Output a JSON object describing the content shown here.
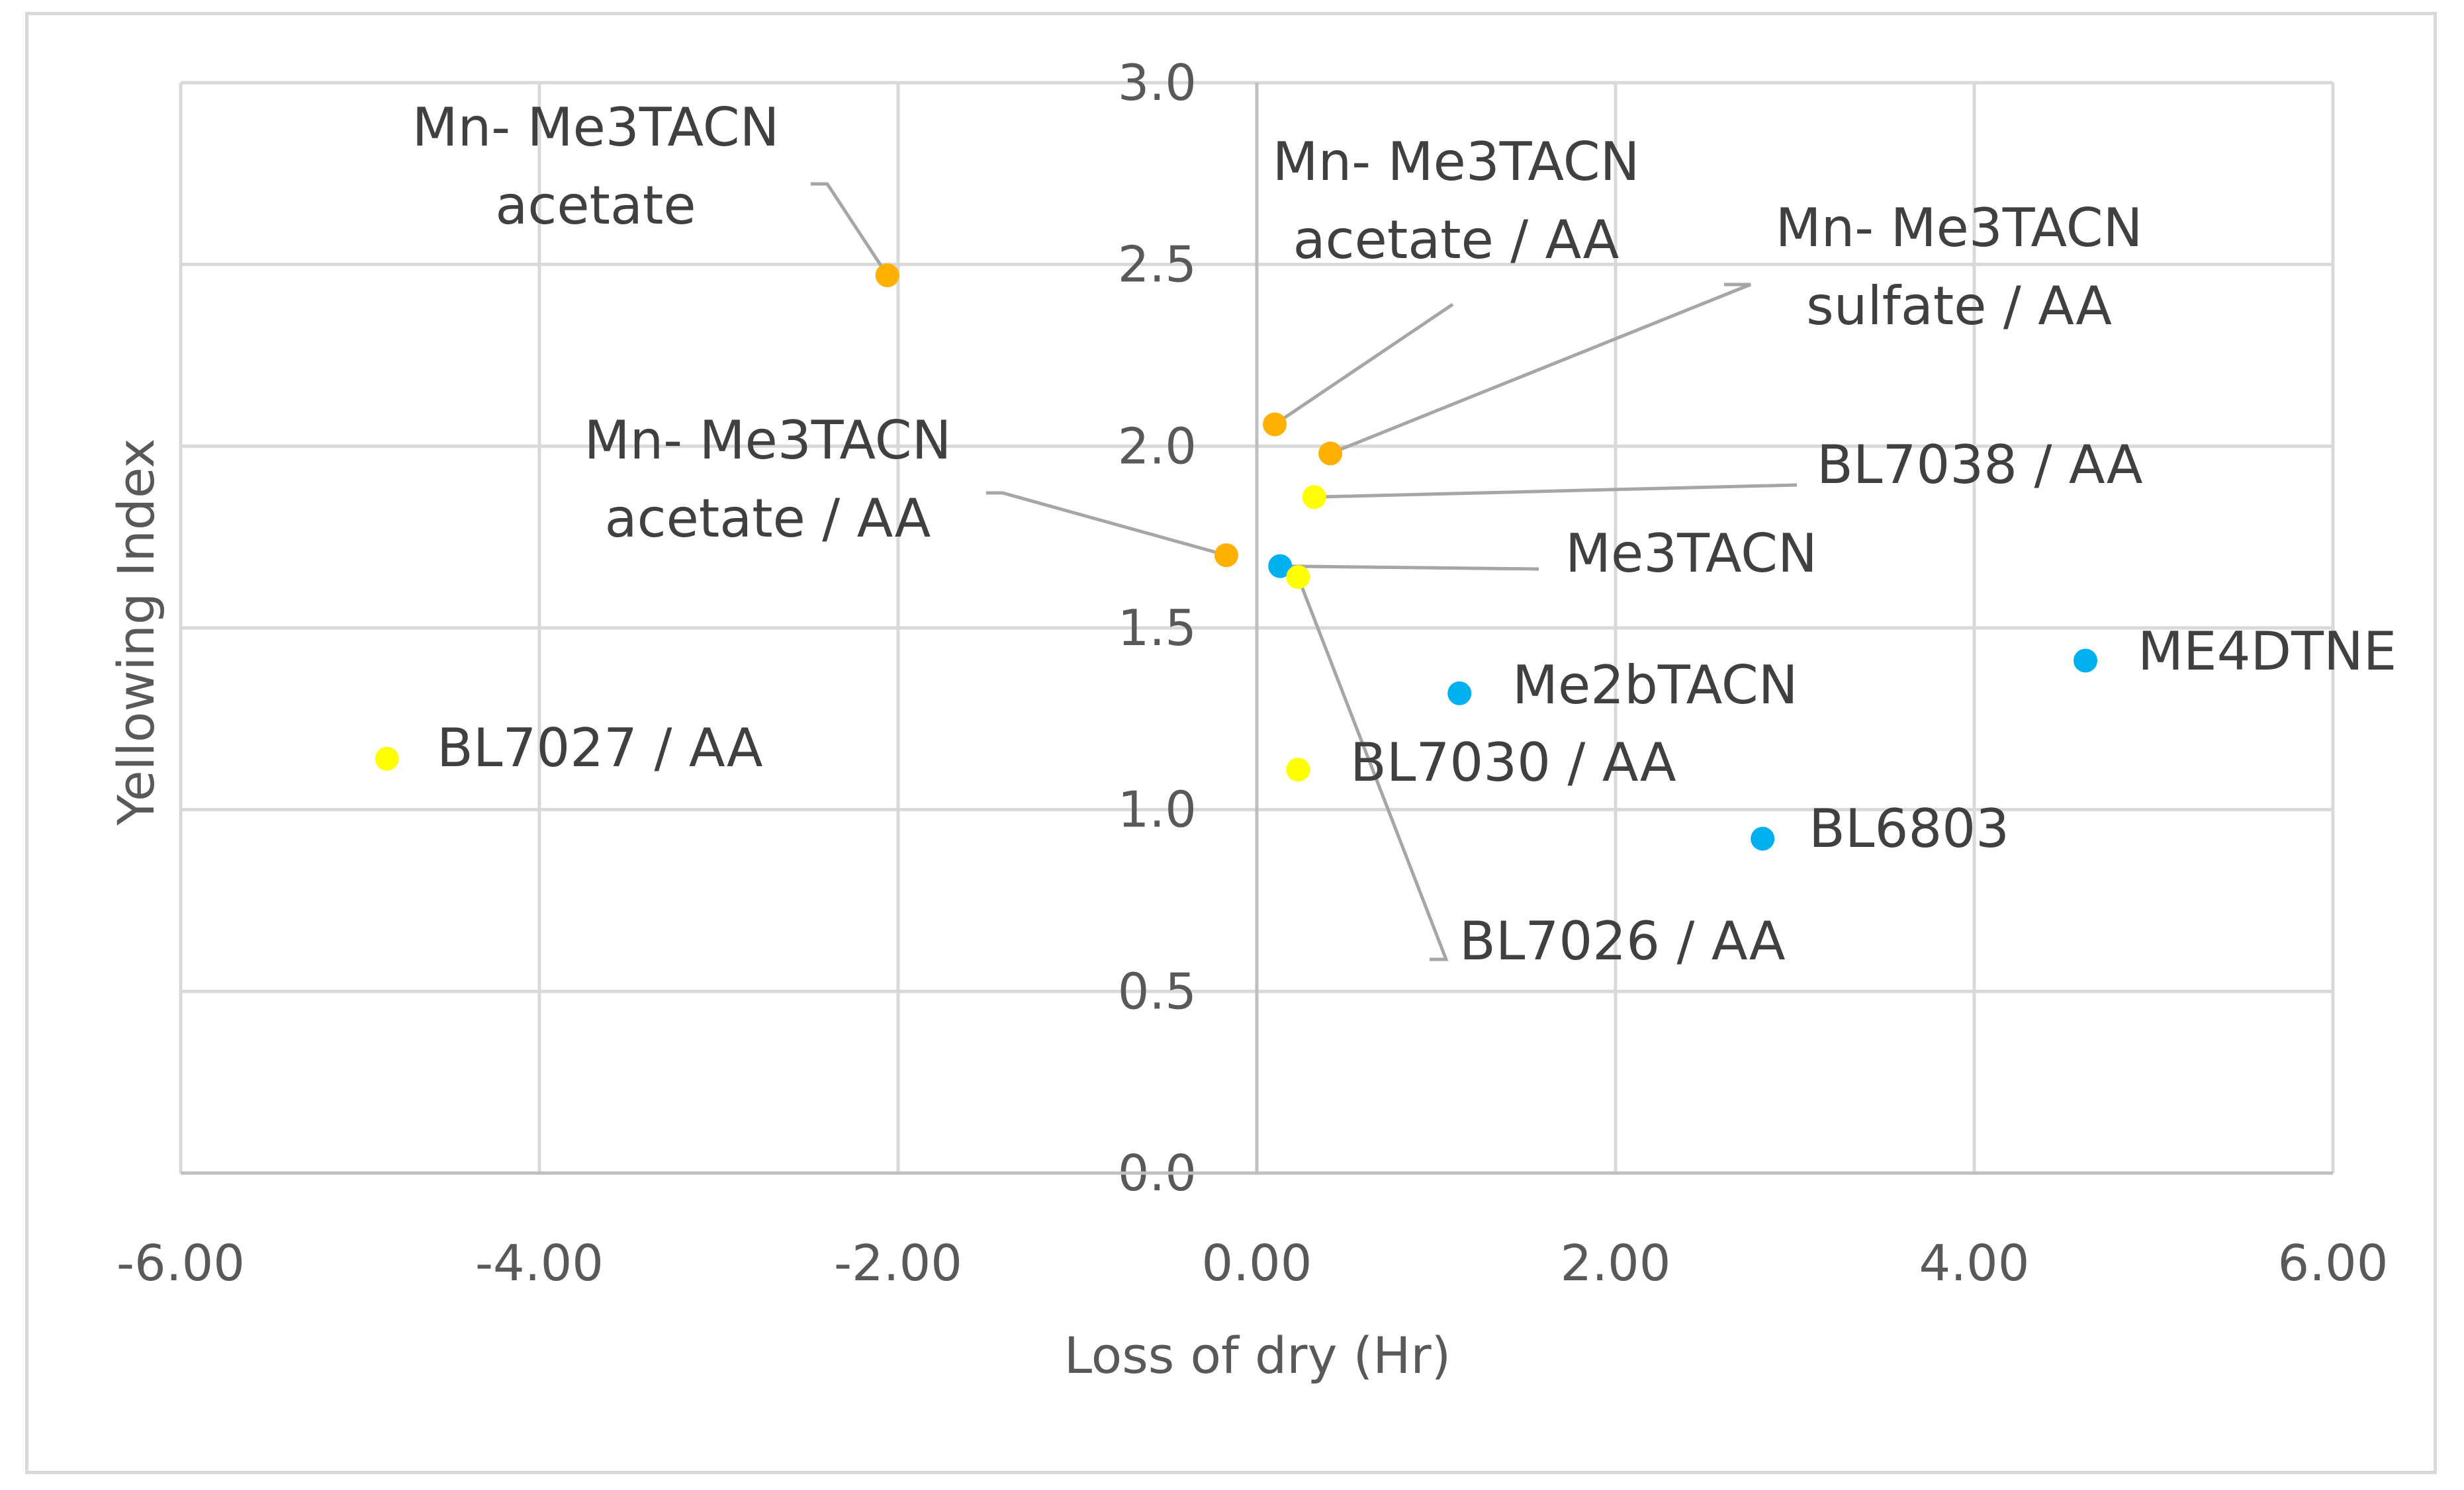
{
  "chart_data": {
    "type": "scatter",
    "title": "",
    "xlabel": "Loss of dry (Hr)",
    "ylabel": "Yellowing Index",
    "xlim": [
      -6,
      6
    ],
    "ylim": [
      0,
      3
    ],
    "x_ticks": [
      "-6.00",
      "-4.00",
      "-2.00",
      "0.00",
      "2.00",
      "4.00",
      "6.00"
    ],
    "y_ticks": [
      "0.0",
      "0.5",
      "1.0",
      "1.5",
      "2.0",
      "2.5",
      "3.0"
    ],
    "grid": true,
    "colors": {
      "orange": "#FFB000",
      "yellow": "#FFFF00",
      "blue": "#00B0F0",
      "grid": "#d9d9d9",
      "leader": "#a6a6a6"
    },
    "points": [
      {
        "x": -2.06,
        "y": 2.47,
        "color": "orange",
        "label": [
          "Mn- Me3TACN",
          "acetate"
        ]
      },
      {
        "x": 0.1,
        "y": 2.06,
        "color": "orange",
        "label": [
          "Mn- Me3TACN",
          "acetate / AA"
        ]
      },
      {
        "x": 0.41,
        "y": 1.98,
        "color": "orange",
        "label": [
          "Mn- Me3TACN",
          "sulfate / AA"
        ]
      },
      {
        "x": -0.17,
        "y": 1.7,
        "color": "orange",
        "label": [
          "Mn- Me3TACN",
          "acetate / AA"
        ]
      },
      {
        "x": 0.32,
        "y": 1.86,
        "color": "yellow",
        "label": [
          "BL7038 / AA"
        ]
      },
      {
        "x": 0.13,
        "y": 1.67,
        "color": "blue",
        "label": [
          "Me3TACN"
        ]
      },
      {
        "x": 0.23,
        "y": 1.64,
        "color": "yellow",
        "label": [
          "BL7026 / AA"
        ]
      },
      {
        "x": 1.13,
        "y": 1.32,
        "color": "blue",
        "label": [
          "Me2bTACN"
        ]
      },
      {
        "x": 0.23,
        "y": 1.11,
        "color": "yellow",
        "label": [
          "BL7030 / AA"
        ]
      },
      {
        "x": -4.85,
        "y": 1.14,
        "color": "yellow",
        "label": [
          "BL7027 / AA"
        ]
      },
      {
        "x": 2.82,
        "y": 0.92,
        "color": "blue",
        "label": [
          "BL6803"
        ]
      },
      {
        "x": 4.62,
        "y": 1.41,
        "color": "blue",
        "label": [
          "ME4DTNE"
        ]
      }
    ]
  }
}
